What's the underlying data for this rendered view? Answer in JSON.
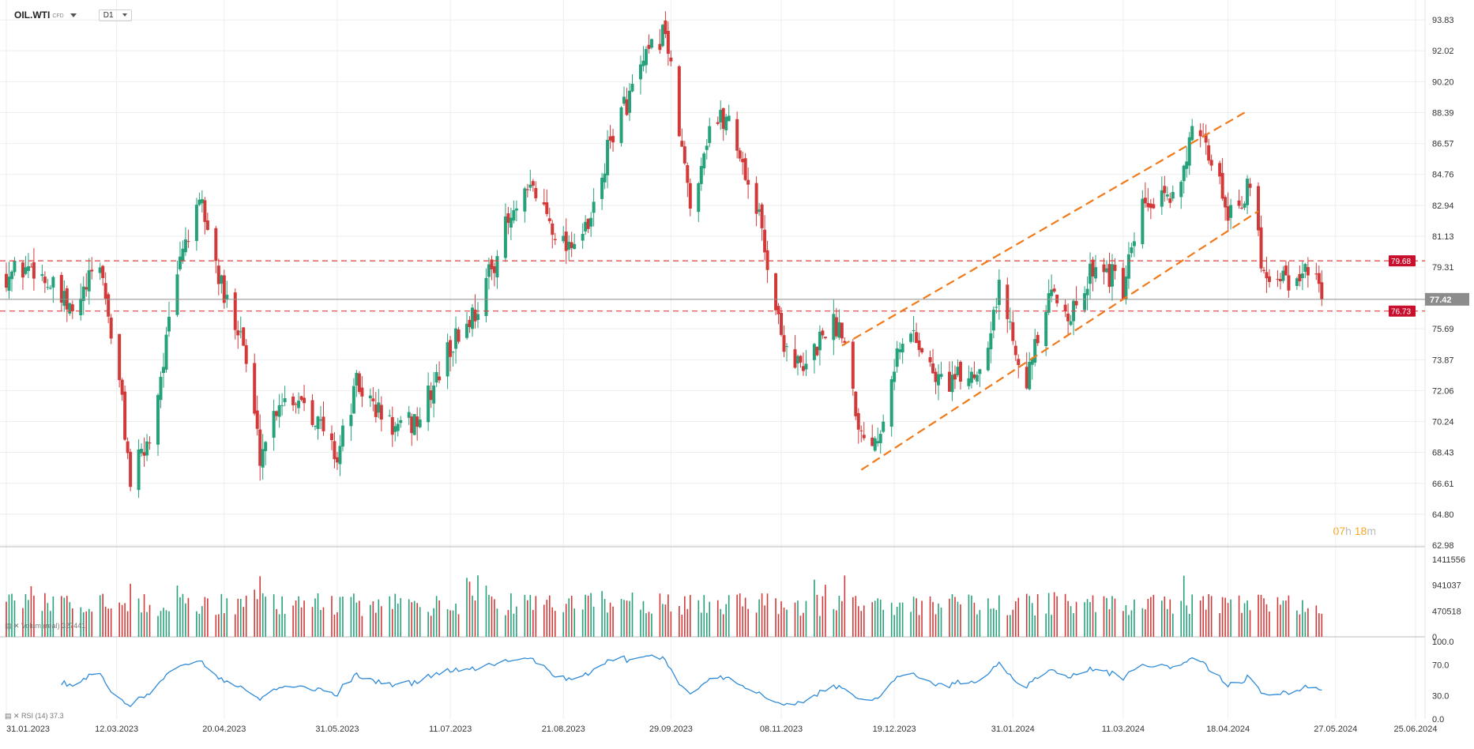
{
  "toolbar": {
    "symbol": "OIL.WTI",
    "symbol_type": "CFD",
    "timeframe": "D1"
  },
  "countdown": {
    "hours": "07",
    "h_unit": "h",
    "minutes": "18",
    "m_unit": "m"
  },
  "colors": {
    "up": "#26a17b",
    "down": "#d23a3a",
    "price_line": "#8c8c8c",
    "level_line": "#e0403b",
    "trend_line": "#f07a1a",
    "rsi_line": "#2f8bd8",
    "grid": "#eeeeee",
    "axis_text": "#333333",
    "countdown": "#f5a623"
  },
  "chart_data": {
    "type": "candlestick",
    "instrument": "OIL.WTI",
    "timeframe": "D1",
    "price_axis_ticks": [
      "93.83",
      "92.02",
      "90.20",
      "88.39",
      "86.57",
      "84.76",
      "82.94",
      "81.13",
      "79.31",
      "75.69",
      "73.87",
      "72.06",
      "70.24",
      "68.43",
      "66.61",
      "64.80",
      "62.98"
    ],
    "ylim": [
      62.98,
      95.0
    ],
    "date_axis_ticks": [
      "31.01.2023",
      "12.03.2023",
      "20.04.2023",
      "31.05.2023",
      "11.07.2023",
      "21.08.2023",
      "29.09.2023",
      "08.11.2023",
      "19.12.2023",
      "31.01.2024",
      "11.03.2024",
      "18.04.2024",
      "27.05.2024",
      "25.06.2024"
    ],
    "last_price": {
      "label": "77.42",
      "value": 77.42
    },
    "horizontal_levels": [
      {
        "label": "79.68",
        "value": 79.68
      },
      {
        "label": "76.73",
        "value": 76.73
      }
    ],
    "close_path": [
      {
        "date": "31.01.2023",
        "close": 78.9
      },
      {
        "date": "10.02.2023",
        "close": 79.4
      },
      {
        "date": "24.02.2023",
        "close": 76.5
      },
      {
        "date": "06.03.2023",
        "close": 79.6
      },
      {
        "date": "14.03.2023",
        "close": 71.3
      },
      {
        "date": "17.03.2023",
        "close": 66.7
      },
      {
        "date": "24.03.2023",
        "close": 69.3
      },
      {
        "date": "31.03.2023",
        "close": 75.8
      },
      {
        "date": "05.04.2023",
        "close": 80.6
      },
      {
        "date": "12.04.2023",
        "close": 82.9
      },
      {
        "date": "20.04.2023",
        "close": 77.4
      },
      {
        "date": "26.04.2023",
        "close": 75.8
      },
      {
        "date": "03.05.2023",
        "close": 68.3
      },
      {
        "date": "10.05.2023",
        "close": 71.6
      },
      {
        "date": "19.05.2023",
        "close": 71.7
      },
      {
        "date": "31.05.2023",
        "close": 68.2
      },
      {
        "date": "07.06.2023",
        "close": 72.4
      },
      {
        "date": "15.06.2023",
        "close": 70.8
      },
      {
        "date": "22.06.2023",
        "close": 69.6
      },
      {
        "date": "30.06.2023",
        "close": 70.5
      },
      {
        "date": "11.07.2023",
        "close": 74.6
      },
      {
        "date": "21.07.2023",
        "close": 77.0
      },
      {
        "date": "31.07.2023",
        "close": 81.6
      },
      {
        "date": "10.08.2023",
        "close": 83.9
      },
      {
        "date": "21.08.2023",
        "close": 80.7
      },
      {
        "date": "30.08.2023",
        "close": 81.4
      },
      {
        "date": "08.09.2023",
        "close": 87.3
      },
      {
        "date": "19.09.2023",
        "close": 91.1
      },
      {
        "date": "27.09.2023",
        "close": 93.4
      },
      {
        "date": "29.09.2023",
        "close": 90.6
      },
      {
        "date": "06.10.2023",
        "close": 82.8
      },
      {
        "date": "13.10.2023",
        "close": 87.7
      },
      {
        "date": "20.10.2023",
        "close": 88.1
      },
      {
        "date": "31.10.2023",
        "close": 82.2
      },
      {
        "date": "08.11.2023",
        "close": 75.3
      },
      {
        "date": "16.11.2023",
        "close": 73.0
      },
      {
        "date": "24.11.2023",
        "close": 75.8
      },
      {
        "date": "30.11.2023",
        "close": 75.9
      },
      {
        "date": "07.12.2023",
        "close": 69.4
      },
      {
        "date": "13.12.2023",
        "close": 69.5
      },
      {
        "date": "19.12.2023",
        "close": 73.9
      },
      {
        "date": "26.12.2023",
        "close": 75.6
      },
      {
        "date": "03.01.2024",
        "close": 72.7
      },
      {
        "date": "12.01.2024",
        "close": 72.7
      },
      {
        "date": "19.01.2024",
        "close": 73.4
      },
      {
        "date": "26.01.2024",
        "close": 78.0
      },
      {
        "date": "05.02.2024",
        "close": 72.8
      },
      {
        "date": "14.02.2024",
        "close": 77.6
      },
      {
        "date": "23.02.2024",
        "close": 76.5
      },
      {
        "date": "01.03.2024",
        "close": 79.9
      },
      {
        "date": "11.03.2024",
        "close": 77.9
      },
      {
        "date": "18.03.2024",
        "close": 82.7
      },
      {
        "date": "28.03.2024",
        "close": 83.2
      },
      {
        "date": "05.04.2024",
        "close": 86.9
      },
      {
        "date": "12.04.2024",
        "close": 85.7
      },
      {
        "date": "18.04.2024",
        "close": 82.7
      },
      {
        "date": "26.04.2024",
        "close": 83.9
      },
      {
        "date": "01.05.2024",
        "close": 79.0
      },
      {
        "date": "08.05.2024",
        "close": 79.0
      },
      {
        "date": "14.05.2024",
        "close": 78.0
      },
      {
        "date": "17.05.2024",
        "close": 79.6
      },
      {
        "date": "22.05.2024",
        "close": 77.4
      }
    ],
    "trend_channel": [
      {
        "start": {
          "date": "30.11.2023",
          "price": 74.7
        },
        "end": {
          "date": "24.04.2024",
          "price": 88.39
        }
      },
      {
        "start": {
          "date": "07.12.2023",
          "price": 67.4
        },
        "end": {
          "date": "29.04.2024",
          "price": 82.6
        }
      }
    ],
    "volume": {
      "label": "Volum (real)",
      "value_label": "327441",
      "axis_ticks": [
        "1411556",
        "941037",
        "470518",
        "0"
      ],
      "ylim": [
        0,
        1411556
      ]
    },
    "rsi": {
      "label": "RSI (14)",
      "value_label": "37.3",
      "axis_ticks": [
        "100.0",
        "70.0",
        "30.0",
        "0.0"
      ],
      "ylim": [
        0,
        100
      ]
    }
  }
}
